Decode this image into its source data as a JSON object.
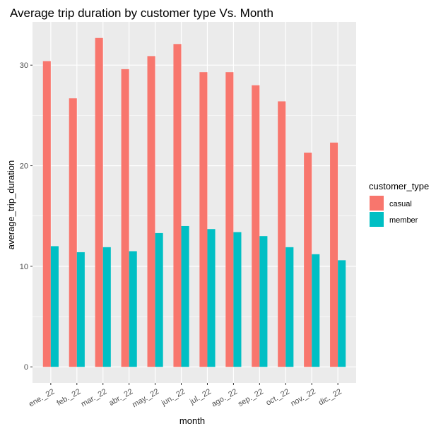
{
  "chart_data": {
    "type": "bar",
    "title": "Average trip duration by customer type Vs. Month",
    "xlabel": "month",
    "ylabel": "average_trip_duration",
    "categories": [
      "ene._22",
      "feb._22",
      "mar._22",
      "abr._22",
      "may._22",
      "jun._22",
      "jul._22",
      "ago._22",
      "sep._22",
      "oct._22",
      "nov._22",
      "dic._22"
    ],
    "series": [
      {
        "name": "casual",
        "color": "#F8766D",
        "values": [
          30.4,
          26.7,
          32.7,
          29.6,
          30.9,
          32.1,
          29.3,
          29.3,
          28.0,
          26.4,
          21.3,
          22.3
        ]
      },
      {
        "name": "member",
        "color": "#00BFC4",
        "values": [
          12.0,
          11.4,
          11.9,
          11.5,
          13.3,
          14.0,
          13.7,
          13.4,
          13.0,
          11.9,
          11.2,
          10.6
        ]
      }
    ],
    "yticks": [
      0,
      10,
      20,
      30
    ],
    "ylim": [
      -1.6,
      34.3
    ],
    "legend": {
      "title": "customer_type",
      "position": "right"
    },
    "grid": true,
    "panel_background": "#EBEBEB",
    "grid_color": "#FFFFFF"
  }
}
